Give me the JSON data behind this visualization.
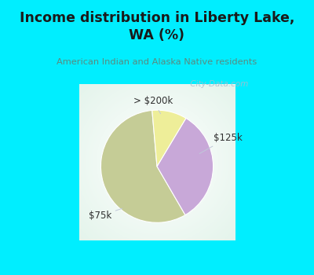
{
  "title": "Income distribution in Liberty Lake,\nWA (%)",
  "subtitle": "American Indian and Alaska Native residents",
  "slices": [
    {
      "label": "$75k",
      "value": 57,
      "color": "#c5cc96"
    },
    {
      "label": "$125k",
      "value": 33,
      "color": "#c8a8d8"
    },
    {
      "label": "> $200k",
      "value": 10,
      "color": "#eeee99"
    }
  ],
  "title_color": "#1a1a1a",
  "subtitle_color": "#5a8a80",
  "cyan_bg": "#00eeff",
  "chart_bg": "#ffffff",
  "watermark": " City-Data.com",
  "watermark_color": "#aabbcc",
  "label_color": "#303030",
  "line_color": "#c0c8d8",
  "startangle": 95
}
